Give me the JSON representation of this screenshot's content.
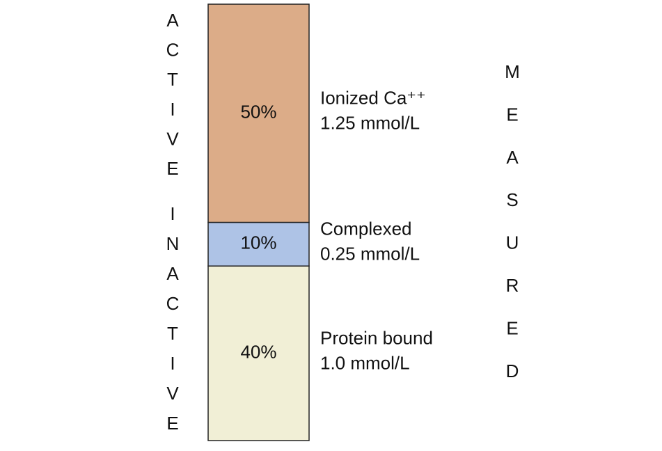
{
  "chart_data": {
    "type": "stacked-bar",
    "ylim": [
      0,
      100
    ],
    "side_labels": {
      "left_top": "ACTIVE",
      "left_bottom": "INACTIVE",
      "right": "MEASURED"
    },
    "series": [
      {
        "name": "Ionized Ca⁺⁺",
        "amount": "1.25 mmol/L",
        "color": "#dcac88",
        "values": [
          50
        ],
        "value_labels": [
          "50%"
        ]
      },
      {
        "name": "Complexed",
        "amount": "0.25 mmol/L",
        "color": "#aec3e6",
        "values": [
          10
        ],
        "value_labels": [
          "10%"
        ]
      },
      {
        "name": "Protein bound",
        "amount": "1.0 mmol/L",
        "color": "#f1efd6",
        "values": [
          40
        ],
        "value_labels": [
          "40%"
        ]
      }
    ]
  }
}
